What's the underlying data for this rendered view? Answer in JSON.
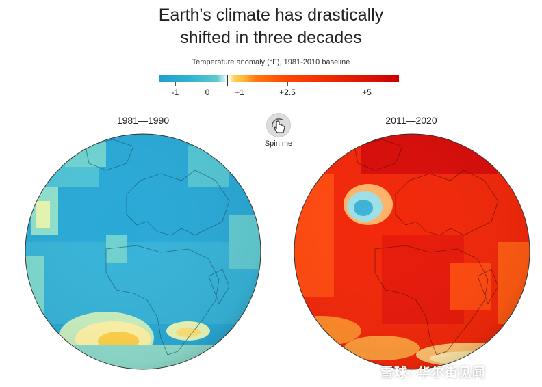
{
  "title_line1": "Earth's climate has drastically",
  "title_line2": "shifted in three decades",
  "subtitle": "Temperature anomaly (°F), 1981-2010 baseline",
  "scale": {
    "min": -1.5,
    "max": 6.0,
    "ticks": [
      {
        "value": -1,
        "label": "-1"
      },
      {
        "value": 0,
        "label": "0"
      },
      {
        "value": 1,
        "label": "+1"
      },
      {
        "value": 2.5,
        "label": "+2.5"
      },
      {
        "value": 5,
        "label": "+5"
      }
    ],
    "colors": {
      "cold": "#1f9fcf",
      "neutral": "#ffffff",
      "warm": "#ff7a10",
      "hot": "#cc0000"
    }
  },
  "globes": [
    {
      "label": "1981—1990",
      "base_color": "#2aa9d6"
    },
    {
      "label": "2011—2020",
      "base_color": "#f2280a"
    }
  ],
  "spin": {
    "label": "Spin me",
    "icon": "hand-pointer-icon"
  },
  "watermark": "雪球: 华尔街见闻"
}
